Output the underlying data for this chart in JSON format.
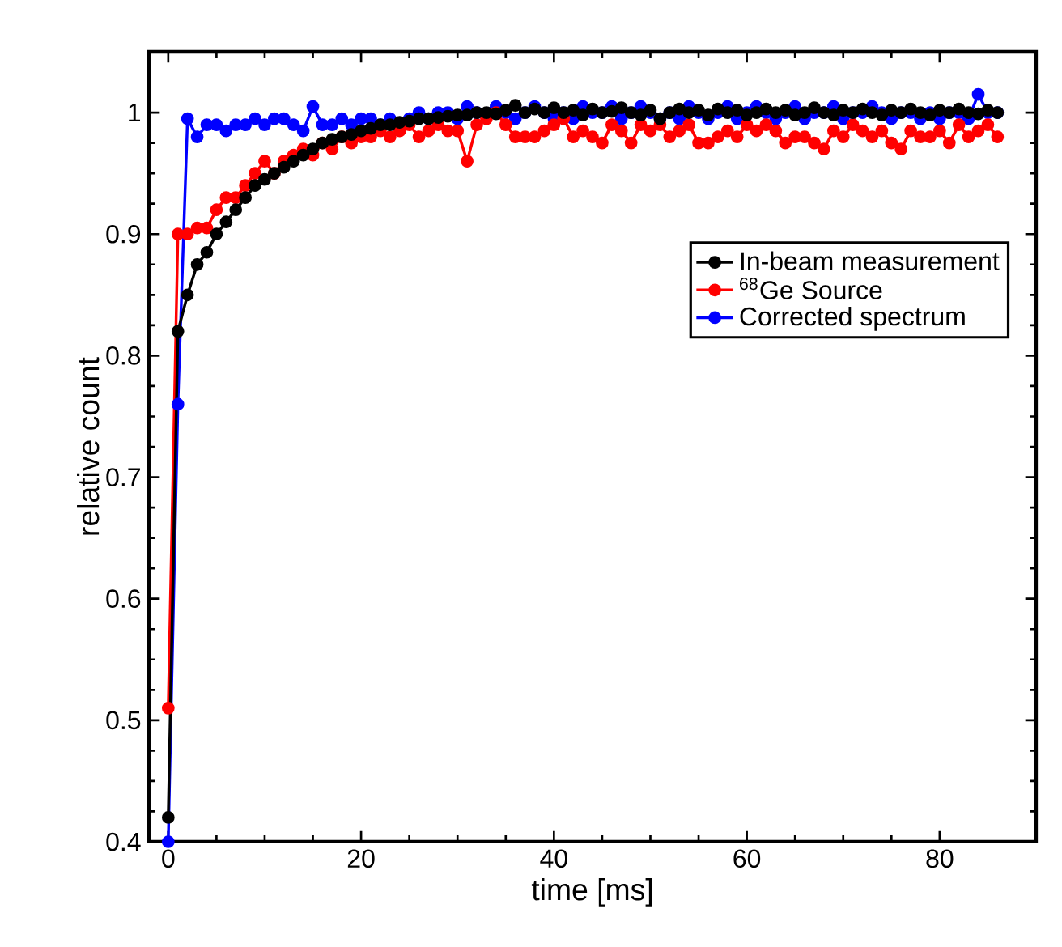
{
  "chart_data": {
    "type": "line",
    "xlabel": "time [ms]",
    "ylabel": "relative count",
    "x": [
      0,
      1,
      2,
      3,
      4,
      5,
      6,
      7,
      8,
      9,
      10,
      11,
      12,
      13,
      14,
      15,
      16,
      17,
      18,
      19,
      20,
      21,
      22,
      23,
      24,
      25,
      26,
      27,
      28,
      29,
      30,
      31,
      32,
      33,
      34,
      35,
      36,
      37,
      38,
      39,
      40,
      41,
      42,
      43,
      44,
      45,
      46,
      47,
      48,
      49,
      50,
      51,
      52,
      53,
      54,
      55,
      56,
      57,
      58,
      59,
      60,
      61,
      62,
      63,
      64,
      65,
      66,
      67,
      68,
      69,
      70,
      71,
      72,
      73,
      74,
      75,
      76,
      77,
      78,
      79,
      80,
      81,
      82,
      83,
      84,
      85,
      86
    ],
    "series": [
      {
        "name": "In-beam measurement",
        "color": "#000000",
        "values": [
          0.42,
          0.82,
          0.85,
          0.875,
          0.885,
          0.9,
          0.91,
          0.92,
          0.93,
          0.94,
          0.945,
          0.95,
          0.955,
          0.96,
          0.965,
          0.97,
          0.975,
          0.978,
          0.98,
          0.982,
          0.985,
          0.987,
          0.99,
          0.99,
          0.992,
          0.993,
          0.995,
          0.995,
          0.996,
          0.997,
          0.998,
          0.998,
          1.0,
          1.0,
          0.999,
          1.002,
          1.006,
          1.0,
          1.003,
          1.0,
          1.004,
          1.0,
          1.002,
          0.998,
          1.003,
          1.0,
          1.001,
          1.004,
          1.0,
          0.998,
          1.002,
          0.995,
          1.0,
          1.003,
          1.0,
          1.002,
          0.998,
          1.003,
          1.0,
          1.002,
          0.998,
          1.0,
          1.003,
          1.0,
          1.002,
          0.998,
          1.0,
          1.004,
          1.0,
          0.998,
          1.002,
          1.0,
          1.003,
          1.0,
          0.998,
          1.002,
          1.0,
          1.003,
          1.0,
          0.998,
          1.002,
          1.0,
          1.003,
          1.0,
          0.999,
          1.002,
          1.0
        ]
      },
      {
        "name": "$^{68}$Ge Source",
        "color": "#ff0000",
        "values": [
          0.51,
          0.9,
          0.9,
          0.905,
          0.905,
          0.92,
          0.93,
          0.93,
          0.94,
          0.95,
          0.96,
          0.95,
          0.96,
          0.965,
          0.97,
          0.965,
          0.975,
          0.97,
          0.98,
          0.975,
          0.98,
          0.98,
          0.985,
          0.98,
          0.985,
          0.99,
          0.98,
          0.985,
          0.99,
          0.985,
          0.985,
          0.96,
          0.99,
          0.995,
          1.0,
          0.99,
          0.98,
          0.98,
          0.98,
          0.985,
          0.99,
          0.995,
          0.98,
          0.985,
          0.98,
          0.975,
          0.99,
          0.985,
          0.975,
          0.99,
          0.985,
          0.99,
          0.98,
          0.985,
          0.99,
          0.975,
          0.975,
          0.98,
          0.985,
          0.98,
          0.99,
          0.985,
          0.99,
          0.985,
          0.975,
          0.98,
          0.98,
          0.975,
          0.97,
          0.985,
          0.98,
          0.99,
          0.985,
          0.98,
          0.985,
          0.975,
          0.97,
          0.985,
          0.98,
          0.98,
          0.985,
          0.975,
          0.99,
          0.98,
          0.985,
          0.99,
          0.98
        ]
      },
      {
        "name": "Corrected spectrum",
        "color": "#0000ff",
        "values": [
          0.4,
          0.76,
          0.995,
          0.98,
          0.99,
          0.99,
          0.985,
          0.99,
          0.99,
          0.995,
          0.99,
          0.995,
          0.995,
          0.99,
          0.985,
          1.005,
          0.99,
          0.99,
          0.995,
          0.99,
          0.995,
          0.995,
          0.99,
          0.995,
          0.99,
          0.995,
          1.0,
          0.995,
          1.0,
          1.0,
          0.995,
          1.005,
          1.0,
          null,
          1.005,
          1.0,
          0.995,
          1.0,
          1.005,
          1.0,
          0.995,
          1.0,
          0.995,
          1.005,
          1.0,
          1.0,
          1.005,
          0.995,
          1.0,
          1.005,
          1.0,
          0.995,
          1.0,
          0.995,
          1.005,
          1.0,
          0.995,
          1.0,
          1.005,
          0.995,
          1.0,
          1.005,
          1.0,
          0.995,
          1.0,
          1.005,
          0.995,
          1.0,
          1.0,
          1.005,
          0.995,
          1.0,
          1.0,
          1.005,
          1.0,
          0.995,
          1.0,
          1.0,
          0.995,
          1.0,
          0.995,
          1.0,
          1.0,
          0.995,
          1.015,
          1.0,
          1.0
        ]
      }
    ],
    "xlim": [
      -2,
      90
    ],
    "ylim": [
      0.4,
      1.05
    ],
    "xticks": [
      0,
      20,
      40,
      60,
      80
    ],
    "yticks": [
      0.4,
      0.5,
      0.6,
      0.7,
      0.8,
      0.9,
      1
    ],
    "legend": "right",
    "marker": "circle",
    "line_style": "solid",
    "grid": false
  }
}
